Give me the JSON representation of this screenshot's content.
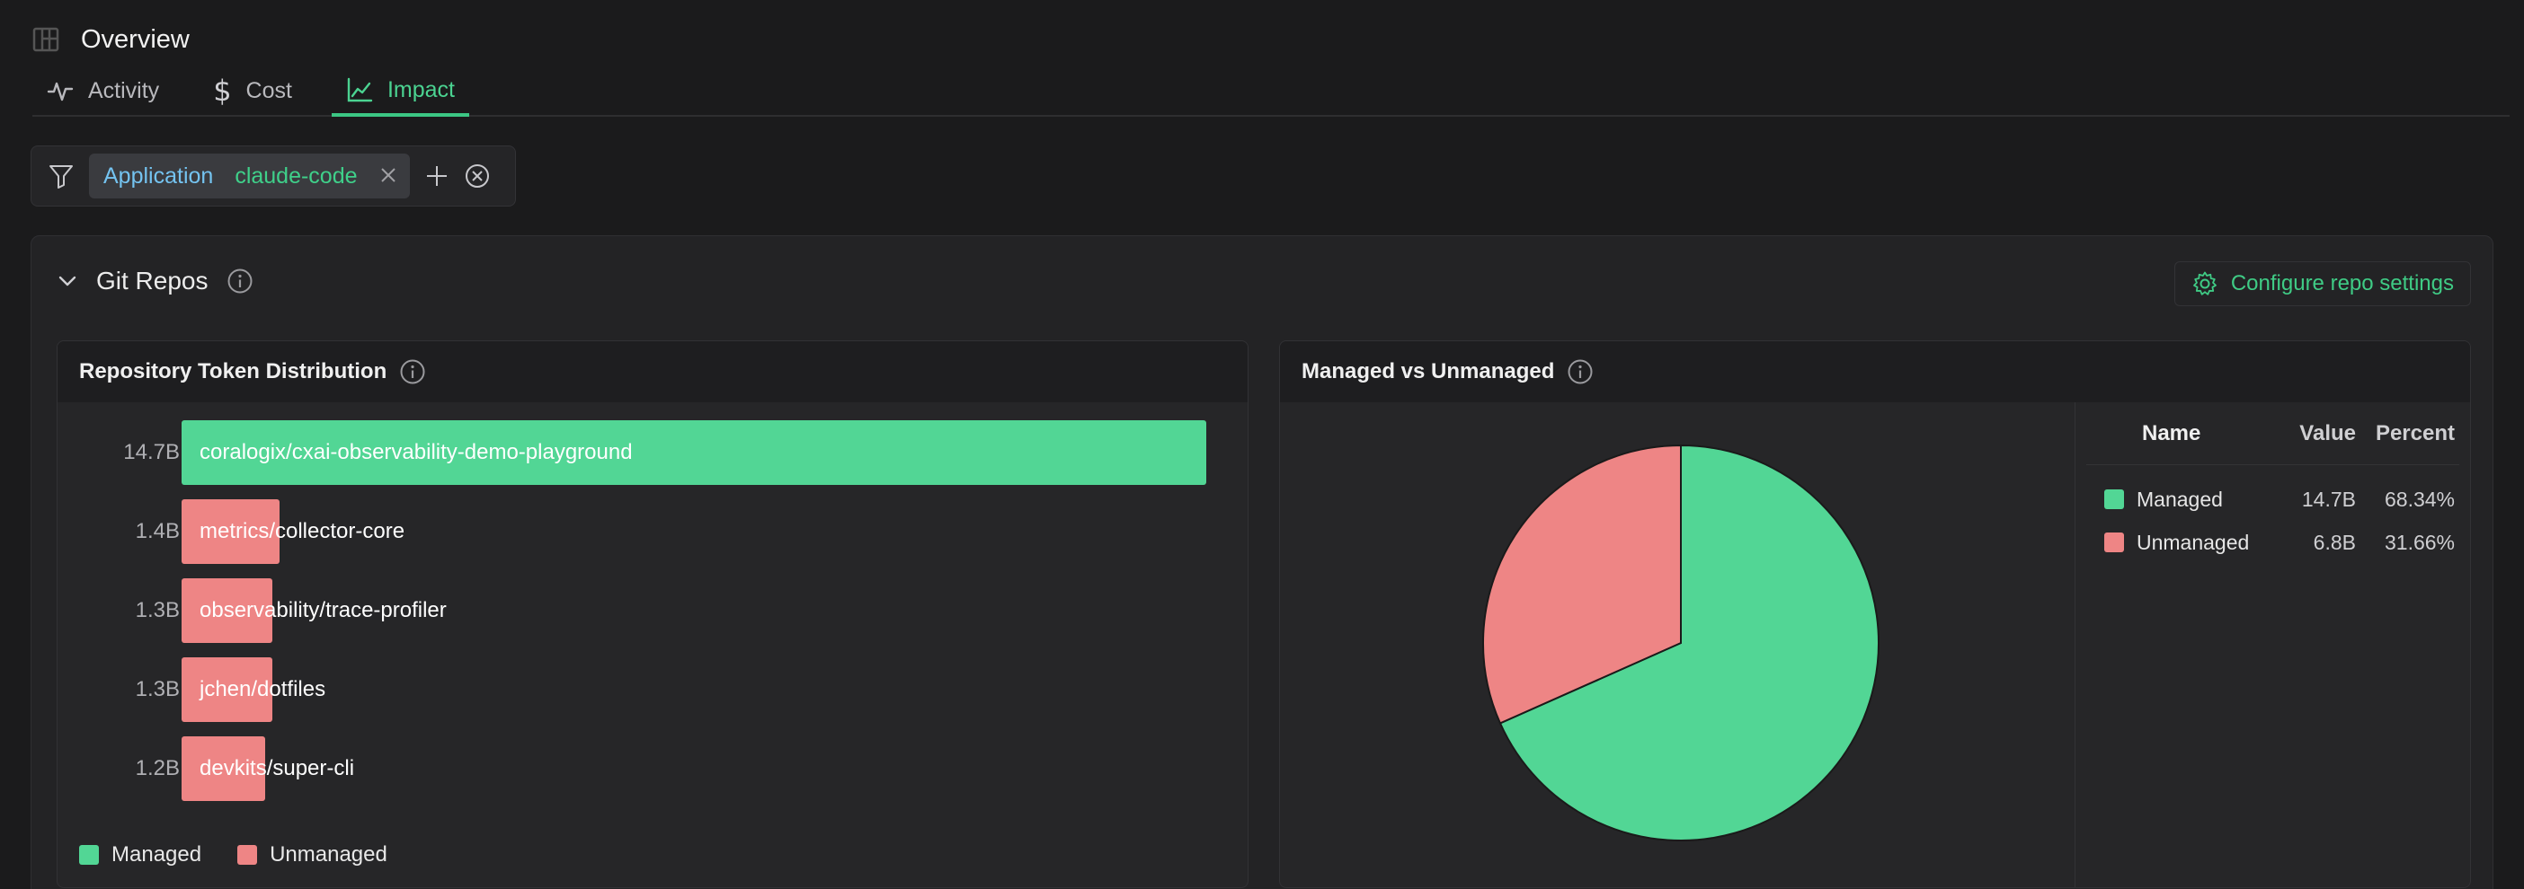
{
  "header": {
    "title": "Overview"
  },
  "tabs": [
    {
      "label": "Activity",
      "icon": "activity-icon"
    },
    {
      "label": "Cost",
      "icon": "dollar-icon"
    },
    {
      "label": "Impact",
      "icon": "line-chart-icon",
      "active": true
    }
  ],
  "filter": {
    "key": "Application",
    "value": "claude-code"
  },
  "section": {
    "title": "Git Repos",
    "config_label": "Configure repo settings"
  },
  "colors": {
    "managed": "#52d695",
    "unmanaged": "#ee8585",
    "accent": "#3fcb85"
  },
  "bar_card": {
    "title": "Repository Token Distribution",
    "legend": [
      "Managed",
      "Unmanaged"
    ]
  },
  "pie_card": {
    "title": "Managed vs Unmanaged",
    "table_headers": {
      "name": "Name",
      "value": "Value",
      "percent": "Percent"
    },
    "rows": [
      {
        "name": "Managed",
        "value": "14.7B",
        "percent": "68.34%"
      },
      {
        "name": "Unmanaged",
        "value": "6.8B",
        "percent": "31.66%"
      }
    ]
  },
  "chart_data": [
    {
      "type": "bar",
      "title": "Repository Token Distribution",
      "orientation": "horizontal",
      "categories": [
        "coralogix/cxai-observability-demo-playground",
        "metrics/collector-core",
        "observability/trace-profiler",
        "jchen/dotfiles",
        "devkits/super-cli"
      ],
      "values": [
        14.7,
        1.4,
        1.3,
        1.3,
        1.2
      ],
      "value_labels": [
        "14.7B",
        "1.4B",
        "1.3B",
        "1.3B",
        "1.2B"
      ],
      "value_unit": "B tokens",
      "groups": [
        "Managed",
        "Unmanaged",
        "Unmanaged",
        "Unmanaged",
        "Unmanaged"
      ],
      "legend": [
        "Managed",
        "Unmanaged"
      ],
      "legend_position": "bottom-left"
    },
    {
      "type": "pie",
      "title": "Managed vs Unmanaged",
      "labels": [
        "Managed",
        "Unmanaged"
      ],
      "values": [
        68.34,
        31.66
      ]
    }
  ]
}
